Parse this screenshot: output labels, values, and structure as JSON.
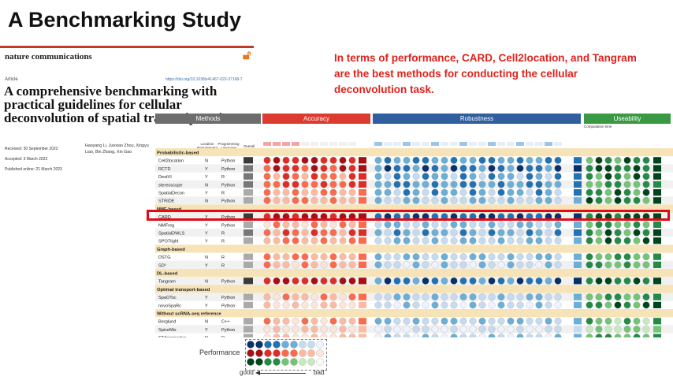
{
  "slide": {
    "title": "A Benchmarking Study",
    "claim": "In terms of performance, CARD, Cell2location, and Tangram are the best methods for conducting the cellular deconvolution task."
  },
  "paper": {
    "journal": "nature communications",
    "article_label": "Article",
    "doi": "https://doi.org/10.1038/s41467-023-37168-7",
    "title": "A comprehensive benchmarking with practical guidelines for cellular deconvolution of spatial transcriptomics",
    "received": "Received: 30 September 2022",
    "accepted": "Accepted: 3 March 2023",
    "published": "Published online: 21 March 2023",
    "authors": "Haoyang Li, Juexiao Zhou, Xingyu Liao, Bin Zhang, Xin Gao"
  },
  "figure": {
    "headers": {
      "methods": "Methods",
      "accuracy": "Accuracy",
      "robustness": "Robustness",
      "useability": "Useability"
    },
    "col_location": "Location Requirement",
    "col_language": "Programming Language",
    "col_overall": "Overall",
    "computation_time": "Computation time",
    "legend": {
      "label": "Performance",
      "good": "good",
      "bad": "bad"
    },
    "rows": [
      {
        "type": "group",
        "label": "Probabilistic-based"
      },
      {
        "type": "method",
        "name": "Cell2location",
        "loc": "N",
        "lang": "Python",
        "acc": 0.2,
        "rob": 0.4,
        "use": 0.3
      },
      {
        "type": "method",
        "name": "RCTD",
        "loc": "Y",
        "lang": "Python",
        "acc": 0.3,
        "rob": 0.3,
        "use": 0.2
      },
      {
        "type": "method",
        "name": "DestVI",
        "loc": "Y",
        "lang": "R",
        "acc": 0.5,
        "rob": 0.5,
        "use": 0.3
      },
      {
        "type": "method",
        "name": "stereoscope",
        "loc": "N",
        "lang": "Python",
        "acc": 0.4,
        "rob": 0.4,
        "use": 0.4
      },
      {
        "type": "method",
        "name": "SpatialDecon",
        "loc": "Y",
        "lang": "R",
        "acc": 0.6,
        "rob": 0.5,
        "use": 0.3
      },
      {
        "type": "method",
        "name": "STRIDE",
        "loc": "N",
        "lang": "Python",
        "acc": 0.6,
        "rob": 0.6,
        "use": 0.3
      },
      {
        "type": "group",
        "label": "NMF-based"
      },
      {
        "type": "method",
        "name": "CARD",
        "loc": "Y",
        "lang": "Python",
        "acc": 0.1,
        "rob": 0.2,
        "use": 0.1,
        "highlight": true
      },
      {
        "type": "method",
        "name": "NMFreg",
        "loc": "Y",
        "lang": "Python",
        "acc": 0.7,
        "rob": 0.6,
        "use": 0.4
      },
      {
        "type": "method",
        "name": "SpatialDWLS",
        "loc": "Y",
        "lang": "R",
        "acc": 0.5,
        "rob": 0.5,
        "use": 0.3
      },
      {
        "type": "method",
        "name": "SPOTlight",
        "loc": "Y",
        "lang": "R",
        "acc": 0.6,
        "rob": 0.6,
        "use": 0.3
      },
      {
        "type": "group",
        "label": "Graph-based"
      },
      {
        "type": "method",
        "name": "DSTG",
        "loc": "N",
        "lang": "R",
        "acc": 0.6,
        "rob": 0.6,
        "use": 0.4
      },
      {
        "type": "method",
        "name": "SD²",
        "loc": "Y",
        "lang": "R",
        "acc": 0.7,
        "rob": 0.7,
        "use": 0.4
      },
      {
        "type": "group",
        "label": "DL-based"
      },
      {
        "type": "method",
        "name": "Tangram",
        "loc": "N",
        "lang": "Python",
        "acc": 0.2,
        "rob": 0.3,
        "use": 0.2
      },
      {
        "type": "group",
        "label": "Optimal transport-based"
      },
      {
        "type": "method",
        "name": "SpaOTsc",
        "loc": "Y",
        "lang": "Python",
        "acc": 0.7,
        "rob": 0.6,
        "use": 0.4
      },
      {
        "type": "method",
        "name": "novoSpaRc",
        "loc": "Y",
        "lang": "Python",
        "acc": 0.8,
        "rob": 0.7,
        "use": 0.3
      },
      {
        "type": "group",
        "label": "Without scRNA-seq reference"
      },
      {
        "type": "method",
        "name": "Berglund",
        "loc": "N",
        "lang": "C++",
        "acc": 0.7,
        "rob": 0.6,
        "use": 0.5
      },
      {
        "type": "method",
        "name": "SpiceMix",
        "loc": "Y",
        "lang": "Python",
        "acc": 0.8,
        "rob": 0.8,
        "use": 0.6
      },
      {
        "type": "method",
        "name": "STdeconvolve",
        "loc": "N",
        "lang": "R",
        "acc": 0.8,
        "rob": 0.7,
        "use": 0.4
      }
    ],
    "colors": {
      "accuracy": [
        "#a50f15",
        "#de2d26",
        "#fb6a4a",
        "#fcbba1",
        "#fee5d9"
      ],
      "robustness": [
        "#08306b",
        "#2171b5",
        "#6baed6",
        "#c6dbef",
        "#eff3ff"
      ],
      "useability": [
        "#00441b",
        "#238b45",
        "#74c476",
        "#c7e9c0",
        "#f7fcf5"
      ],
      "group_band": "#f6e3b8",
      "highlight": "#e20a17"
    }
  }
}
